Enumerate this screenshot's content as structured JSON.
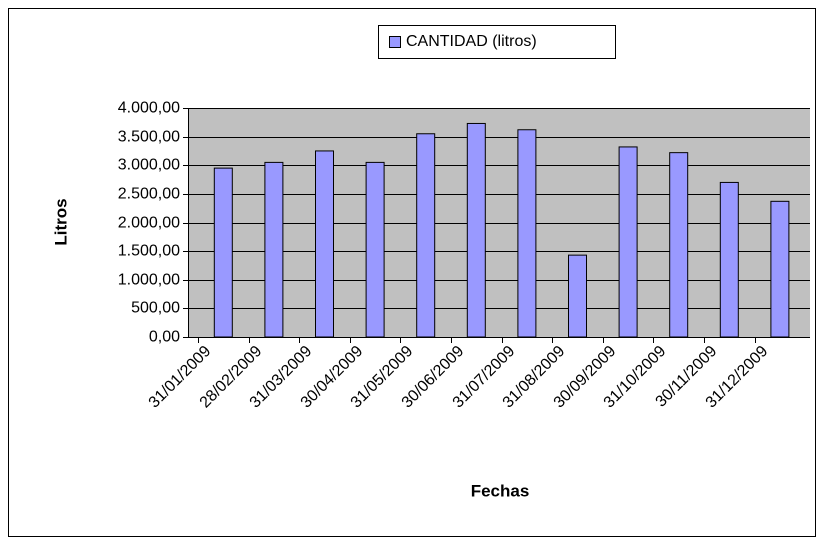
{
  "chart_data": {
    "type": "bar",
    "legend_label": "CANTIDAD (litros)",
    "y_label": "Litros",
    "x_label": "Fechas",
    "categories": [
      "31/01/2009",
      "28/02/2009",
      "31/03/2009",
      "30/04/2009",
      "31/05/2009",
      "30/06/2009",
      "31/07/2009",
      "31/08/2009",
      "30/09/2009",
      "31/10/2009",
      "30/11/2009",
      "31/12/2009"
    ],
    "values": [
      2950,
      3050,
      3250,
      3050,
      3550,
      3730,
      3620,
      1430,
      3320,
      3220,
      2700,
      2370
    ],
    "color": "#9999ff",
    "ylim": [
      0,
      4000
    ],
    "yticks": [
      {
        "value": 0,
        "label": "0,00"
      },
      {
        "value": 500,
        "label": "500,00"
      },
      {
        "value": 1000,
        "label": "1.000,00"
      },
      {
        "value": 1500,
        "label": "1.500,00"
      },
      {
        "value": 2000,
        "label": "2.000,00"
      },
      {
        "value": 2500,
        "label": "2.500,00"
      },
      {
        "value": 3000,
        "label": "3.000,00"
      },
      {
        "value": 3500,
        "label": "3.500,00"
      },
      {
        "value": 4000,
        "label": "4.000,00"
      }
    ],
    "grid": true
  }
}
